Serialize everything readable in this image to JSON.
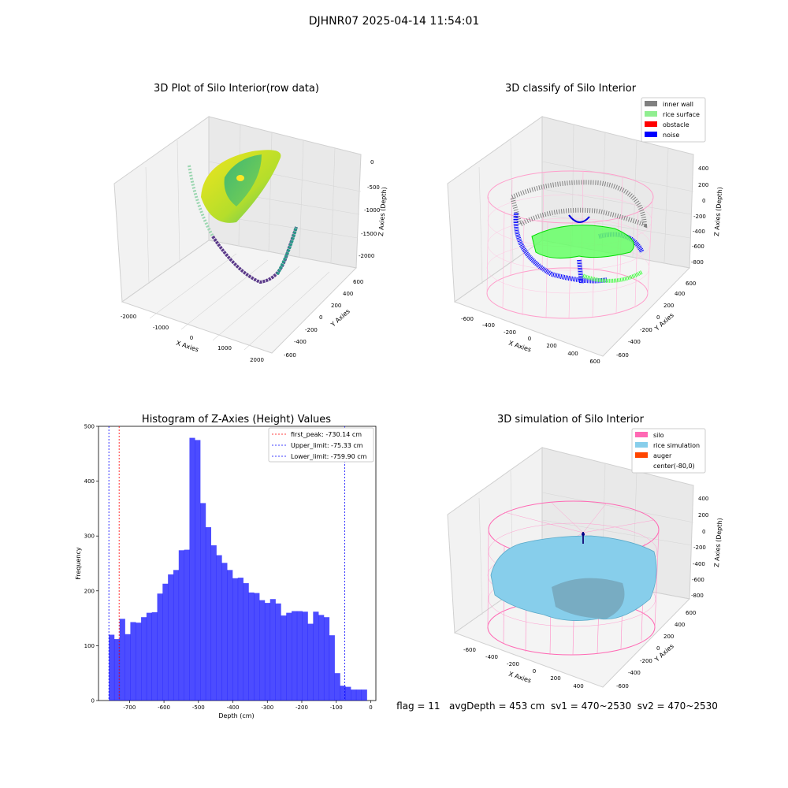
{
  "figure": {
    "suptitle": "DJHNR07 2025-04-14 11:54:01",
    "footer": "flag = 11   avgDepth = 453 cm  sv1 = 470~2530  sv2 = 470~2530"
  },
  "panels": {
    "raw": {
      "title": "3D Plot of Silo Interior(row data)",
      "xlabel": "X Axies",
      "ylabel": "Y Axies",
      "zlabel": "Z Axies (Depth)",
      "xticks": [
        "-2000",
        "-1000",
        "0",
        "1000",
        "2000"
      ],
      "yticks": [
        "-600",
        "-400",
        "-200",
        "0",
        "200",
        "400",
        "600"
      ],
      "zticks": [
        "0",
        "-500",
        "-1000",
        "-1500",
        "-2000"
      ]
    },
    "classify": {
      "title": "3D classify of Silo Interior",
      "xlabel": "X Axies",
      "ylabel": "Y Axies",
      "zlabel": "Z Axies (Depth)",
      "xticks": [
        "-600",
        "-400",
        "-200",
        "0",
        "200",
        "400",
        "600"
      ],
      "yticks": [
        "-600",
        "-400",
        "-200",
        "0",
        "200",
        "400",
        "600"
      ],
      "zticks": [
        "400",
        "200",
        "0",
        "-200",
        "-400",
        "-600",
        "-800"
      ],
      "legend": [
        {
          "label": "inner wall",
          "color": "#808080"
        },
        {
          "label": "rice surface",
          "color": "#90ee90"
        },
        {
          "label": "obstacle",
          "color": "#ff0000"
        },
        {
          "label": "noise",
          "color": "#0000ff"
        }
      ]
    },
    "simulation": {
      "title": "3D simulation of Silo Interior",
      "xlabel": "X Axies",
      "ylabel": "Y Axies",
      "zlabel": "Z Axies (Depth)",
      "xticks": [
        "-600",
        "-400",
        "-200",
        "0",
        "200",
        "400"
      ],
      "yticks": [
        "-600",
        "-400",
        "-200",
        "0",
        "200",
        "400",
        "600"
      ],
      "zticks": [
        "400",
        "200",
        "0",
        "-200",
        "-400",
        "-600",
        "-800"
      ],
      "legend": [
        {
          "label": "silo",
          "color": "#ff69b4"
        },
        {
          "label": "rice simulation",
          "color": "#87ceeb"
        },
        {
          "label": "auger",
          "color": "#ff4500"
        },
        {
          "label": "center(-80,0)",
          "color": ""
        }
      ]
    }
  },
  "chart_data": {
    "type": "bar",
    "title": "Histogram of Z-Axies (Height) Values",
    "xlabel": "Depth (cm)",
    "ylabel": "Frequency",
    "xlim": [
      -790,
      15
    ],
    "ylim": [
      0,
      500
    ],
    "xticks": [
      -700,
      -600,
      -500,
      -400,
      -300,
      -200,
      -100,
      0
    ],
    "yticks": [
      0,
      100,
      200,
      300,
      400,
      500
    ],
    "bar_color": "#0000ff",
    "bin_width": 15.6,
    "bin_starts": [
      -760,
      -744.4,
      -728.8,
      -713.2,
      -697.6,
      -682,
      -666.4,
      -650.8,
      -635.2,
      -619.6,
      -604,
      -588.4,
      -572.8,
      -557.2,
      -541.6,
      -526,
      -510.4,
      -494.8,
      -479.2,
      -463.6,
      -448,
      -432.4,
      -416.8,
      -401.2,
      -385.6,
      -370,
      -354.4,
      -338.8,
      -323.2,
      -307.6,
      -292,
      -276.4,
      -260.8,
      -245.2,
      -229.6,
      -214,
      -198.4,
      -182.8,
      -167.2,
      -151.6,
      -136,
      -120.4,
      -104.8,
      -89.2,
      -73.6,
      -58,
      -42.4,
      -26.8
    ],
    "values": [
      120,
      112,
      149,
      121,
      143,
      142,
      152,
      160,
      161,
      195,
      213,
      230,
      238,
      274,
      275,
      479,
      475,
      360,
      316,
      283,
      265,
      251,
      238,
      223,
      224,
      214,
      197,
      196,
      183,
      178,
      185,
      177,
      155,
      160,
      163,
      163,
      162,
      140,
      162,
      156,
      152,
      119,
      50,
      27,
      25,
      20,
      20,
      20
    ],
    "vlines": [
      {
        "label": "first_peak: -730.14 cm",
        "x": -730.14,
        "color": "#ff0000"
      },
      {
        "label": "Upper_limit: -75.33 cm",
        "x": -75.33,
        "color": "#0000ff"
      },
      {
        "label": "Lower_limit: -759.90 cm",
        "x": -759.9,
        "color": "#0000ff"
      }
    ],
    "legend_position": "top-right"
  }
}
